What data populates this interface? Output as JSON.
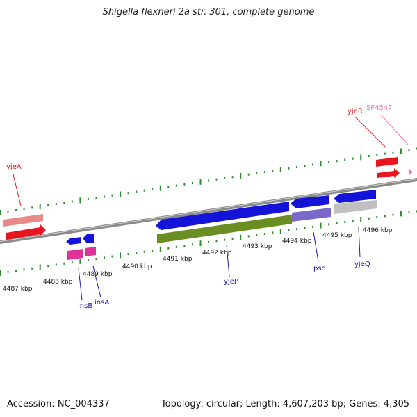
{
  "title": "Shigella flexneri 2a str. 301, complete genome",
  "footer": {
    "accession": "Accession: NC_004337",
    "summary": "Topology: circular; Length: 4,607,203 bp; Genes: 4,305"
  },
  "colors": {
    "backbone": "#8a8a8a",
    "tick": "#2e8b2e",
    "cds_forward": "#e8141e",
    "cds_reverse": "#1414d8",
    "gene_forward": "#e88a8a",
    "pseudo": "#f07ab8",
    "gene_reverse_magenta": "#e0309a",
    "rna": "#6b8e23",
    "misc_purple": "#7b68c8",
    "misc_gray": "#c0c0c0",
    "label_forward": "#d81818",
    "label_reverse": "#1818b0",
    "label_pink": "#f07ab8"
  },
  "kbp_labels": [
    "4487 kbp",
    "4488 kbp",
    "4489 kbp",
    "4490 kbp",
    "4491 kbp",
    "4492 kbp",
    "4493 kbp",
    "4494 kbp",
    "4495 kbp",
    "4496 kbp"
  ],
  "gene_labels": {
    "yjeA": "yjeA",
    "yjeR": "yjeR",
    "SF4547": "SF4547",
    "insB": "insB",
    "insA": "insA",
    "yjeP": "yjeP",
    "psd": "psd",
    "yjeQ": "yjeQ"
  }
}
